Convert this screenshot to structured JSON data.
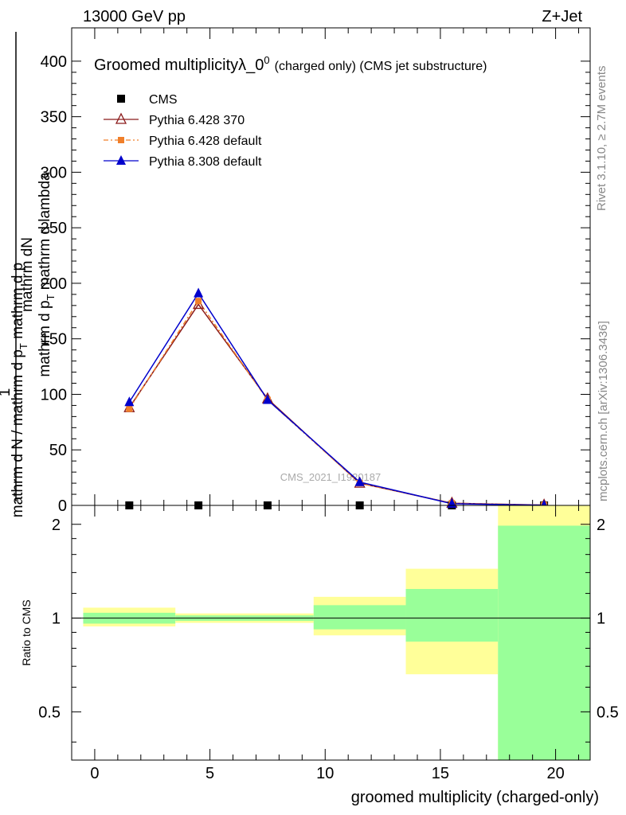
{
  "header": {
    "energy_label": "13000 GeV pp",
    "process_label": "Z+Jet"
  },
  "side_text": {
    "rivet": "Rivet 3.1.10, ≥ 2.7M events",
    "mcplots": "mcplots.cern.ch [arXiv:1306.3436]"
  },
  "watermark": "CMS_2021_I1920187",
  "chart_data": [
    {
      "type": "line",
      "title_main": "Groomed multiplicityλ_0",
      "title_sup": "0",
      "title_suffix": "(charged only) (CMS jet substructure)",
      "ylabel_top": "mathrm dN",
      "ylabel_top_sub1": "mathrm d p",
      "ylabel_top_sub1_sub": "T",
      "ylabel_top_sub2": "mathrm d lambda",
      "ylabel_one": "1",
      "ylabel_bottom": "mathrm d N / mathrm d p",
      "ylabel_bottom_sub": "T",
      "ylabel_bottom_tail": "mathrm d p",
      "ylim": [
        0,
        430
      ],
      "xlim": [
        -1,
        21.5
      ],
      "yticks": [
        0,
        50,
        100,
        150,
        200,
        250,
        300,
        350,
        400
      ],
      "legend_position": "top-left",
      "series": [
        {
          "name": "CMS",
          "color": "#000000",
          "marker": "square",
          "x": [
            1.5,
            4.5,
            7.5,
            11.5,
            15.5,
            19.5
          ],
          "y": [
            0,
            0,
            0,
            0,
            0,
            0
          ]
        },
        {
          "name": "Pythia 6.428 370",
          "color": "#8b1a1a",
          "marker": "triangle-open",
          "x": [
            1.5,
            4.5,
            7.5,
            11.5,
            15.5,
            19.5
          ],
          "y": [
            88,
            181,
            96,
            20,
            2,
            0.3
          ]
        },
        {
          "name": "Pythia 6.428 default",
          "color": "#f07f2a",
          "marker": "square-small",
          "x": [
            1.5,
            4.5,
            7.5,
            11.5,
            15.5,
            19.5
          ],
          "y": [
            87,
            184,
            95,
            20,
            2,
            0.3
          ]
        },
        {
          "name": "Pythia 8.308 default",
          "color": "#0000cc",
          "marker": "triangle",
          "x": [
            1.5,
            4.5,
            7.5,
            11.5,
            15.5,
            19.5
          ],
          "y": [
            93,
            191,
            95,
            21,
            1.5,
            0.2
          ]
        }
      ]
    },
    {
      "type": "area",
      "ylabel": "Ratio to CMS",
      "xlabel": "groomed multiplicity (charged-only)",
      "scale": "log",
      "ylim": [
        0.35,
        2.3
      ],
      "xlim": [
        -1,
        21.5
      ],
      "yticks": [
        0.5,
        1,
        2
      ],
      "xticks": [
        0,
        5,
        10,
        15,
        20
      ],
      "bins": [
        {
          "lo": -0.5,
          "hi": 3.5,
          "yellow": [
            0.94,
            1.08
          ],
          "green": [
            0.96,
            1.04
          ]
        },
        {
          "lo": 3.5,
          "hi": 9.5,
          "yellow": [
            0.965,
            1.035
          ],
          "green": [
            0.98,
            1.02
          ]
        },
        {
          "lo": 9.5,
          "hi": 13.5,
          "yellow": [
            0.88,
            1.17
          ],
          "green": [
            0.92,
            1.1
          ]
        },
        {
          "lo": 13.5,
          "hi": 17.5,
          "yellow": [
            0.66,
            1.44
          ],
          "green": [
            0.84,
            1.24
          ]
        },
        {
          "lo": 17.5,
          "hi": 21.5,
          "yellow": [
            0.35,
            2.3
          ],
          "green": [
            0.35,
            1.98
          ]
        }
      ]
    }
  ]
}
